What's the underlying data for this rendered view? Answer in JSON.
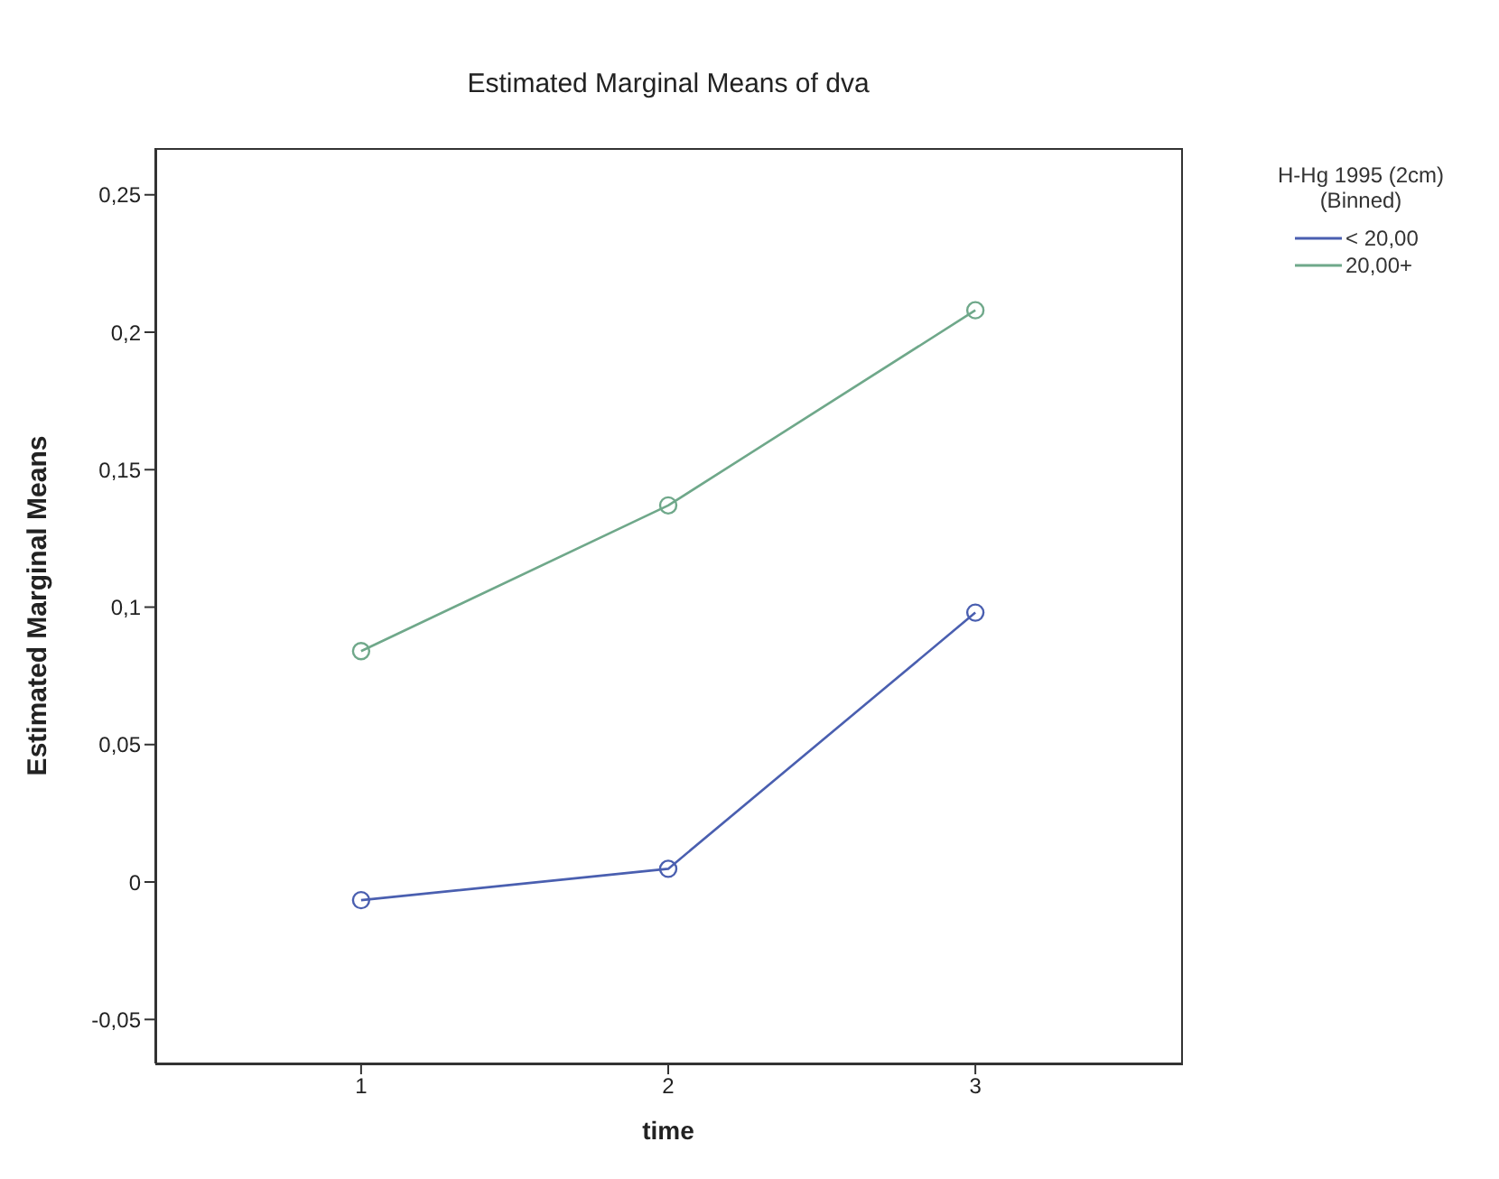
{
  "chart_data": {
    "type": "line",
    "title": "Estimated Marginal Means of dva",
    "xlabel": "time",
    "ylabel": "Estimated Marginal Means",
    "legend_title": "H-Hg 1995 (2cm) (Binned)",
    "x": [
      1,
      2,
      3
    ],
    "xlim": [
      0.33,
      3.67
    ],
    "xticks": [
      1,
      2,
      3
    ],
    "ylim": [
      -0.066,
      0.267
    ],
    "yticks": [
      {
        "value": -0.05,
        "label": "-0,05"
      },
      0,
      {
        "value": 0.05,
        "label": "0,05"
      },
      {
        "value": 0.1,
        "label": "0,1"
      },
      {
        "value": 0.15,
        "label": "0,15"
      },
      {
        "value": 0.2,
        "label": "0,2"
      },
      {
        "value": 0.25,
        "label": "0,25"
      }
    ],
    "series": [
      {
        "name": "< 20,00",
        "color": "#4a5fb0",
        "values": [
          -0.0066,
          0.0048,
          0.098
        ]
      },
      {
        "name": "20,00+",
        "color": "#6fa88a",
        "values": [
          0.084,
          0.137,
          0.208
        ]
      }
    ],
    "legend": "top right",
    "marker": "circle",
    "line_style": "solid",
    "grid": false
  }
}
